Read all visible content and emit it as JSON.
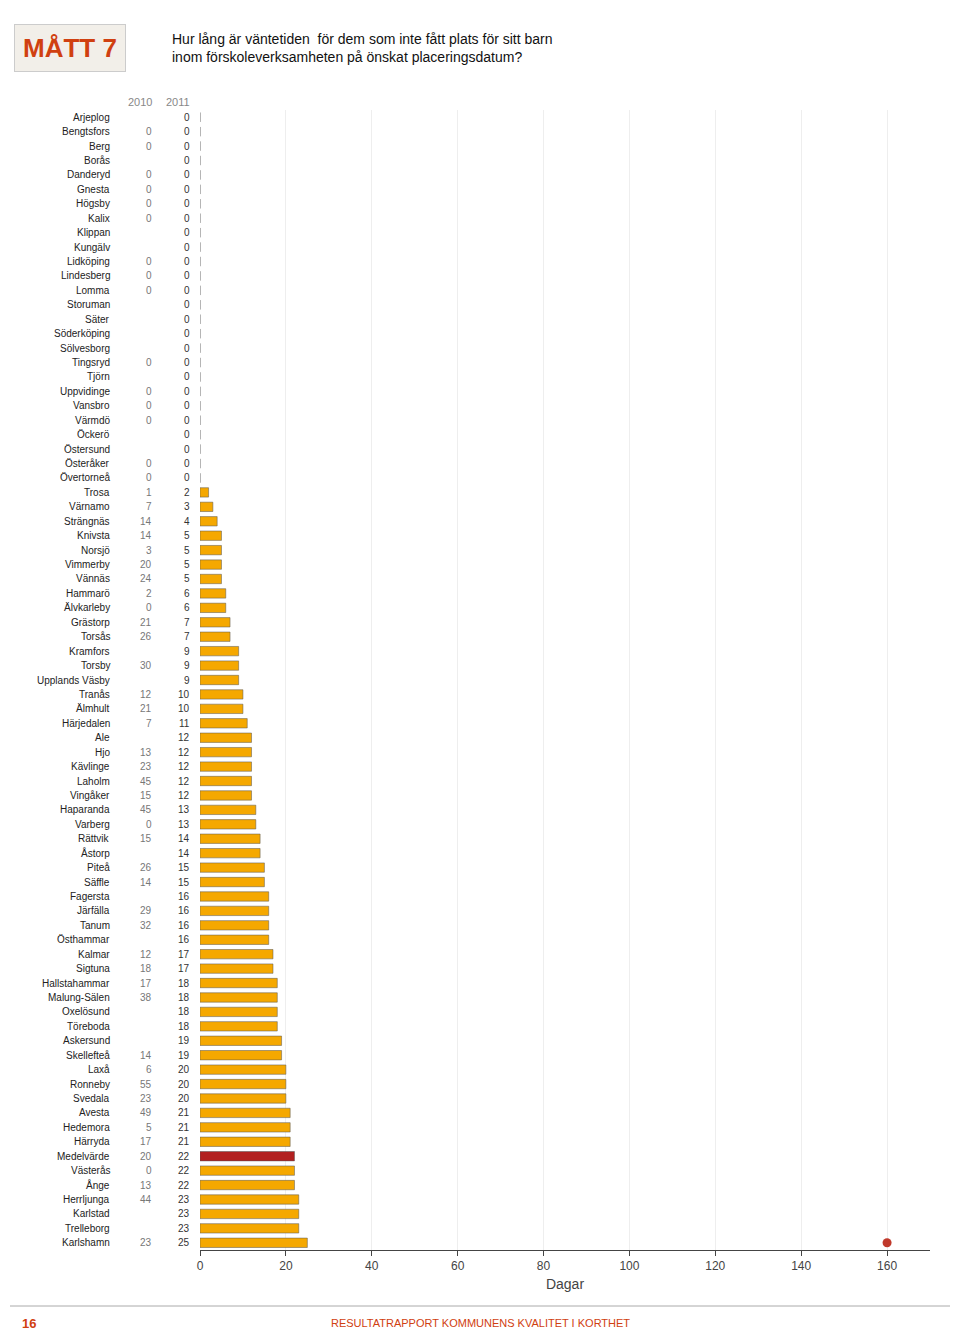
{
  "chart_data": {
    "type": "bar",
    "orientation": "horizontal",
    "title": "MÅTT 7",
    "subtitle": "Hur lång är väntetiden  för dem som inte fått plats för sitt barn\ninom förskoleverksamheten på önskat placeringsdatum?",
    "xlabel": "Dagar",
    "categories": [
      "Arjeplog",
      "Bengtsfors",
      "Berg",
      "Borås",
      "Danderyd",
      "Gnesta",
      "Högsby",
      "Kalix",
      "Klippan",
      "Kungälv",
      "Lidköping",
      "Lindesberg",
      "Lomma",
      "Storuman",
      "Säter",
      "Söderköping",
      "Sölvesborg",
      "Tingsryd",
      "Tjörn",
      "Uppvidinge",
      "Vansbro",
      "Värmdö",
      "Öckerö",
      "Östersund",
      "Österåker",
      "Övertorneå",
      "Trosa",
      "Värnamo",
      "Strängnäs",
      "Knivsta",
      "Norsjö",
      "Vimmerby",
      "Vännäs",
      "Hammarö",
      "Älvkarleby",
      "Grästorp",
      "Torsås",
      "Kramfors",
      "Torsby",
      "Upplands Väsby",
      "Tranås",
      "Älmhult",
      "Härjedalen",
      "Ale",
      "Hjo",
      "Kävlinge",
      "Laholm",
      "Vingåker",
      "Haparanda",
      "Varberg",
      "Rättvik",
      "Åstorp",
      "Piteå",
      "Säffle",
      "Fagersta",
      "Järfälla",
      "Tanum",
      "Östhammar",
      "Kalmar",
      "Sigtuna",
      "Hallstahammar",
      "Malung-Sälen",
      "Oxelösund",
      "Töreboda",
      "Askersund",
      "Skellefteå",
      "Laxå",
      "Ronneby",
      "Svedala",
      "Avesta",
      "Hedemora",
      "Härryda",
      "Medelvärde",
      "Västerås",
      "Ånge",
      "Herrljunga",
      "Karlstad",
      "Trelleborg",
      "Karlshamn"
    ],
    "series": [
      {
        "type": "bar",
        "values": [
          0,
          0,
          0,
          0,
          0,
          0,
          0,
          0,
          0,
          0,
          0,
          0,
          0,
          0,
          0,
          0,
          0,
          0,
          0,
          0,
          0,
          0,
          0,
          0,
          0,
          0,
          2,
          3,
          4,
          5,
          5,
          5,
          5,
          6,
          6,
          7,
          7,
          9,
          9,
          9,
          10,
          10,
          11,
          12,
          12,
          12,
          12,
          12,
          13,
          13,
          14,
          14,
          15,
          15,
          16,
          16,
          16,
          16,
          17,
          17,
          18,
          18,
          18,
          18,
          19,
          19,
          20,
          20,
          20,
          21,
          21,
          21,
          22,
          22,
          22,
          23,
          23,
          23,
          25
        ],
        "colors": [
          "#F5A800",
          "#F5A800",
          "#F5A800",
          "#F5A800",
          "#F5A800",
          "#F5A800",
          "#F5A800",
          "#F5A800",
          "#F5A800",
          "#F5A800",
          "#F5A800",
          "#F5A800",
          "#F5A800",
          "#F5A800",
          "#F5A800",
          "#F5A800",
          "#F5A800",
          "#F5A800",
          "#F5A800",
          "#F5A800",
          "#F5A800",
          "#F5A800",
          "#F5A800",
          "#F5A800",
          "#F5A800",
          "#F5A800",
          "#F5A800",
          "#F5A800",
          "#F5A800",
          "#F5A800",
          "#F5A800",
          "#F5A800",
          "#F5A800",
          "#F5A800",
          "#F5A800",
          "#F5A800",
          "#F5A800",
          "#F5A800",
          "#F5A800",
          "#F5A800",
          "#F5A800",
          "#F5A800",
          "#F5A800",
          "#F5A800",
          "#F5A800",
          "#F5A800",
          "#F5A800",
          "#F5A800",
          "#F5A800",
          "#F5A800",
          "#F5A800",
          "#F5A800",
          "#F5A800",
          "#F5A800",
          "#F5A800",
          "#F5A800",
          "#F5A800",
          "#F5A800",
          "#F5A800",
          "#F5A800",
          "#F5A800",
          "#F5A800",
          "#F5A800",
          "#F5A800",
          "#F5A800",
          "#F5A800",
          "#F5A800",
          "#F5A800",
          "#F5A800",
          "#F5A800",
          "#F5A800",
          "#F5A800",
          "#B22020",
          "#F5A800",
          "#F5A800",
          "#F5A800",
          "#F5A800",
          "#F5A800",
          "#F5A800"
        ]
      },
      {
        "type": "scatter",
        "marker": "circle",
        "color": "#C0392B",
        "values": [
          null,
          null,
          null,
          null,
          null,
          null,
          null,
          null,
          null,
          null,
          null,
          null,
          null,
          null,
          null,
          null,
          null,
          null,
          null,
          null,
          null,
          null,
          null,
          null,
          null,
          null,
          null,
          null,
          null,
          null,
          null,
          null,
          null,
          null,
          null,
          null,
          null,
          null,
          null,
          null,
          null,
          null,
          null,
          null,
          null,
          null,
          null,
          null,
          null,
          null,
          null,
          null,
          null,
          null,
          null,
          null,
          null,
          null,
          null,
          null,
          null,
          null,
          null,
          null,
          null,
          null,
          null,
          null,
          null,
          null,
          null,
          null,
          null,
          null,
          null,
          null,
          null,
          null,
          160
        ]
      }
    ],
    "columns": [
      {
        "label": "2010",
        "values": [
          null,
          0,
          0,
          null,
          0,
          0,
          0,
          0,
          null,
          null,
          0,
          0,
          0,
          null,
          null,
          null,
          null,
          0,
          null,
          0,
          0,
          0,
          null,
          null,
          0,
          0,
          1,
          7,
          14,
          14,
          3,
          20,
          24,
          2,
          0,
          21,
          26,
          null,
          30,
          null,
          12,
          21,
          7,
          null,
          13,
          23,
          45,
          15,
          45,
          0,
          15,
          null,
          26,
          14,
          null,
          29,
          32,
          null,
          12,
          18,
          17,
          38,
          null,
          null,
          null,
          14,
          6,
          55,
          23,
          49,
          5,
          17,
          20,
          0,
          13,
          44,
          null,
          null,
          23
        ]
      },
      {
        "label": "2011",
        "values": [
          0,
          0,
          0,
          0,
          0,
          0,
          0,
          0,
          0,
          0,
          0,
          0,
          0,
          0,
          0,
          0,
          0,
          0,
          0,
          0,
          0,
          0,
          0,
          0,
          0,
          0,
          2,
          3,
          4,
          5,
          5,
          5,
          5,
          6,
          6,
          7,
          7,
          9,
          9,
          9,
          10,
          10,
          11,
          12,
          12,
          12,
          12,
          12,
          13,
          13,
          14,
          14,
          15,
          15,
          16,
          16,
          16,
          16,
          17,
          17,
          18,
          18,
          18,
          18,
          19,
          19,
          20,
          20,
          20,
          21,
          21,
          21,
          22,
          22,
          22,
          23,
          23,
          23,
          25
        ]
      }
    ],
    "xlim": [
      0,
      170
    ],
    "xticks": [
      0,
      20,
      40,
      60,
      80,
      100,
      120,
      140,
      160
    ],
    "grid": true,
    "footer": "RESULTATRAPPORT KOMMUNENS KVALITET I KORTHET",
    "page": "16"
  }
}
